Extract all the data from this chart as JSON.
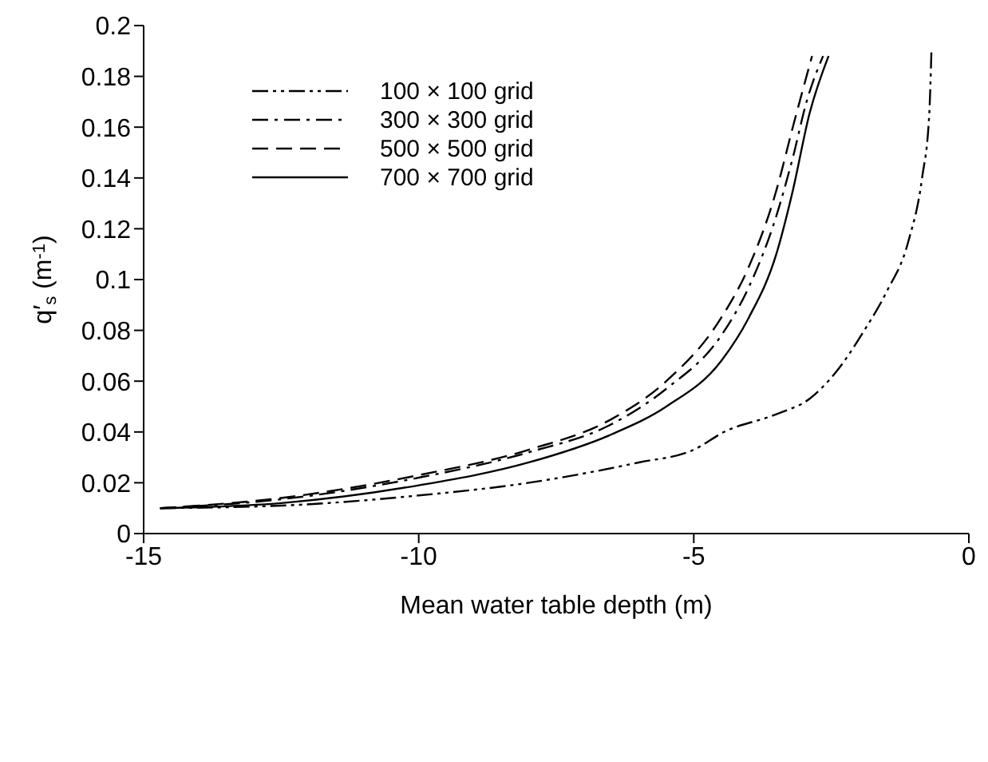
{
  "chart_data": {
    "type": "line",
    "xlabel": "Mean water table depth (m)",
    "ylabel": "q′$_{s}$ (m$^{-1}$)",
    "xlim": [
      -15,
      0
    ],
    "xticks": [
      -15,
      -10,
      -5,
      0
    ],
    "ylim": [
      0,
      0.2
    ],
    "yticks": [
      0,
      0.02,
      0.04,
      0.06,
      0.08,
      0.1,
      0.12,
      0.14,
      0.16,
      0.18,
      0.2
    ],
    "grid": false,
    "legend": "top left",
    "marker": "none",
    "series": [
      {
        "name": "100 × 100 grid",
        "color": "#000000",
        "line_style": "dashdotdot",
        "x": [
          -14.7,
          -12.5,
          -10,
          -8,
          -6,
          -5,
          -4.45,
          -3.5,
          -2.9,
          -2.4,
          -1.9,
          -1.5,
          -1.1,
          -0.85,
          -0.72,
          -0.68
        ],
        "values": [
          0.01,
          0.011,
          0.015,
          0.02,
          0.028,
          0.033,
          0.04,
          0.047,
          0.053,
          0.064,
          0.08,
          0.095,
          0.115,
          0.14,
          0.165,
          0.19
        ]
      },
      {
        "name": "300 × 300 grid",
        "color": "#000000",
        "line_style": "dashdot",
        "x": [
          -14.7,
          -12.5,
          -10,
          -8,
          -6.5,
          -5.5,
          -4.5,
          -4,
          -3.5,
          -3.2,
          -2.95,
          -2.65
        ],
        "values": [
          0.01,
          0.0135,
          0.022,
          0.032,
          0.043,
          0.057,
          0.078,
          0.097,
          0.125,
          0.148,
          0.17,
          0.188
        ]
      },
      {
        "name": "500 × 500 grid",
        "color": "#000000",
        "line_style": "dashed",
        "x": [
          -14.7,
          -12.5,
          -10,
          -8,
          -6.5,
          -5.5,
          -4.5,
          -4,
          -3.5,
          -3.2,
          -2.85
        ],
        "values": [
          0.01,
          0.014,
          0.023,
          0.033,
          0.045,
          0.06,
          0.085,
          0.105,
          0.135,
          0.16,
          0.188
        ]
      },
      {
        "name": "700 × 700 grid",
        "color": "#000000",
        "line_style": "solid",
        "x": [
          -14.7,
          -12.5,
          -10,
          -8,
          -6.5,
          -5.5,
          -4.5,
          -4,
          -3.5,
          -3.2,
          -2.9,
          -2.55
        ],
        "values": [
          0.01,
          0.012,
          0.019,
          0.028,
          0.039,
          0.05,
          0.068,
          0.085,
          0.11,
          0.135,
          0.165,
          0.188
        ]
      }
    ]
  }
}
